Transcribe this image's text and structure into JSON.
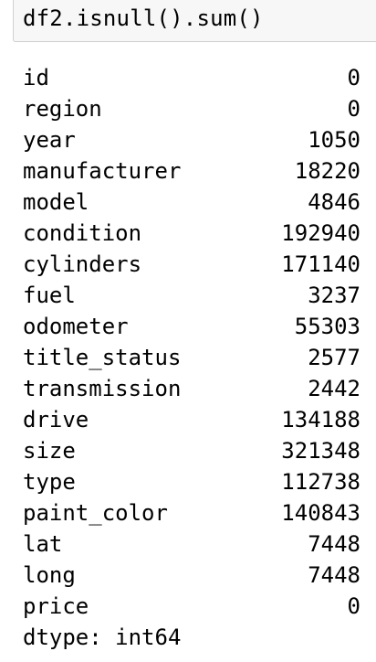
{
  "input": {
    "code": "df2.isnull().sum()"
  },
  "output": {
    "rows": [
      {
        "key": "id",
        "value": "0"
      },
      {
        "key": "region",
        "value": "0"
      },
      {
        "key": "year",
        "value": "1050"
      },
      {
        "key": "manufacturer",
        "value": "18220"
      },
      {
        "key": "model",
        "value": "4846"
      },
      {
        "key": "condition",
        "value": "192940"
      },
      {
        "key": "cylinders",
        "value": "171140"
      },
      {
        "key": "fuel",
        "value": "3237"
      },
      {
        "key": "odometer",
        "value": "55303"
      },
      {
        "key": "title_status",
        "value": "2577"
      },
      {
        "key": "transmission",
        "value": "2442"
      },
      {
        "key": "drive",
        "value": "134188"
      },
      {
        "key": "size",
        "value": "321348"
      },
      {
        "key": "type",
        "value": "112738"
      },
      {
        "key": "paint_color",
        "value": "140843"
      },
      {
        "key": "lat",
        "value": "7448"
      },
      {
        "key": "long",
        "value": "7448"
      },
      {
        "key": "price",
        "value": "0"
      }
    ],
    "dtype": "dtype: int64"
  }
}
